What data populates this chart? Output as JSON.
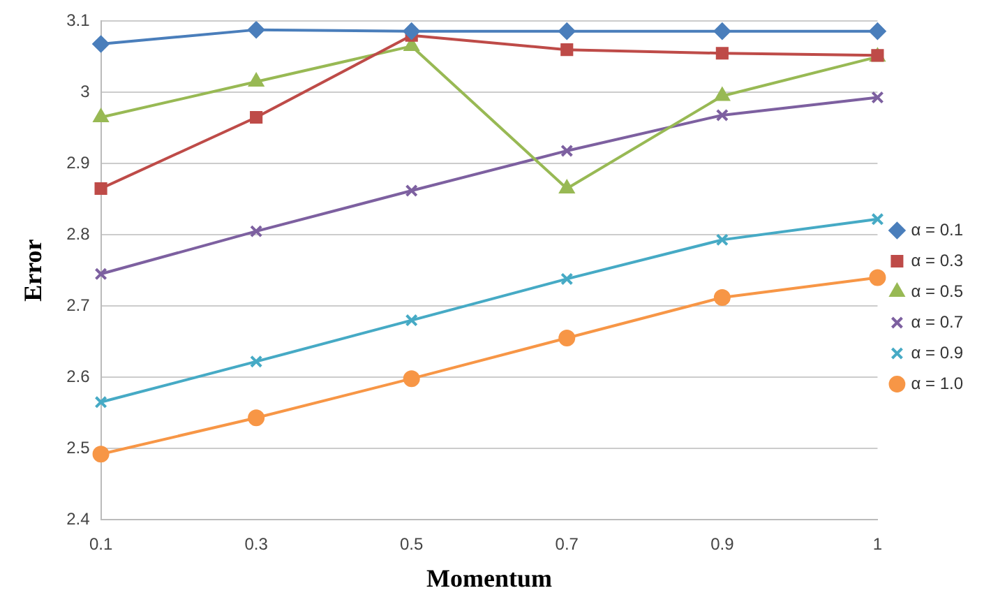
{
  "chart_data": {
    "type": "line",
    "xlabel": "Momentum",
    "ylabel": "Error",
    "categories": [
      "0.1",
      "0.3",
      "0.5",
      "0.7",
      "0.9",
      "1"
    ],
    "ylim": [
      2.4,
      3.1
    ],
    "yticks": [
      {
        "value": 2.4,
        "label": "2.4"
      },
      {
        "value": 2.5,
        "label": "2.5"
      },
      {
        "value": 2.6,
        "label": "2.6"
      },
      {
        "value": 2.7,
        "label": "2.7"
      },
      {
        "value": 2.8,
        "label": "2.8"
      },
      {
        "value": 2.9,
        "label": "2.9"
      },
      {
        "value": 3,
        "label": "3"
      },
      {
        "value": 3.1,
        "label": "3.1"
      }
    ],
    "grid": "y",
    "legend": "right",
    "line_style": "solid",
    "series": [
      {
        "name": "α = 0.1",
        "color": "#4a7ebb",
        "marker": "diamond",
        "values": [
          3.068,
          3.088,
          3.086,
          3.086,
          3.086,
          3.086
        ]
      },
      {
        "name": "α = 0.3",
        "color": "#be4b48",
        "marker": "square",
        "values": [
          2.865,
          2.965,
          3.08,
          3.06,
          3.055,
          3.052
        ]
      },
      {
        "name": "α = 0.5",
        "color": "#98b954",
        "marker": "triangle",
        "values": [
          2.965,
          3.015,
          3.065,
          2.865,
          2.995,
          3.05
        ]
      },
      {
        "name": "α = 0.7",
        "color": "#7d60a0",
        "marker": "cross",
        "values": [
          2.745,
          2.805,
          2.862,
          2.918,
          2.968,
          2.993
        ]
      },
      {
        "name": "α = 0.9",
        "color": "#46aac5",
        "marker": "cross",
        "values": [
          2.565,
          2.622,
          2.68,
          2.738,
          2.793,
          2.822
        ]
      },
      {
        "name": "α = 1.0",
        "color": "#f79646",
        "marker": "circle",
        "values": [
          2.492,
          2.543,
          2.598,
          2.655,
          2.712,
          2.74
        ]
      }
    ]
  }
}
